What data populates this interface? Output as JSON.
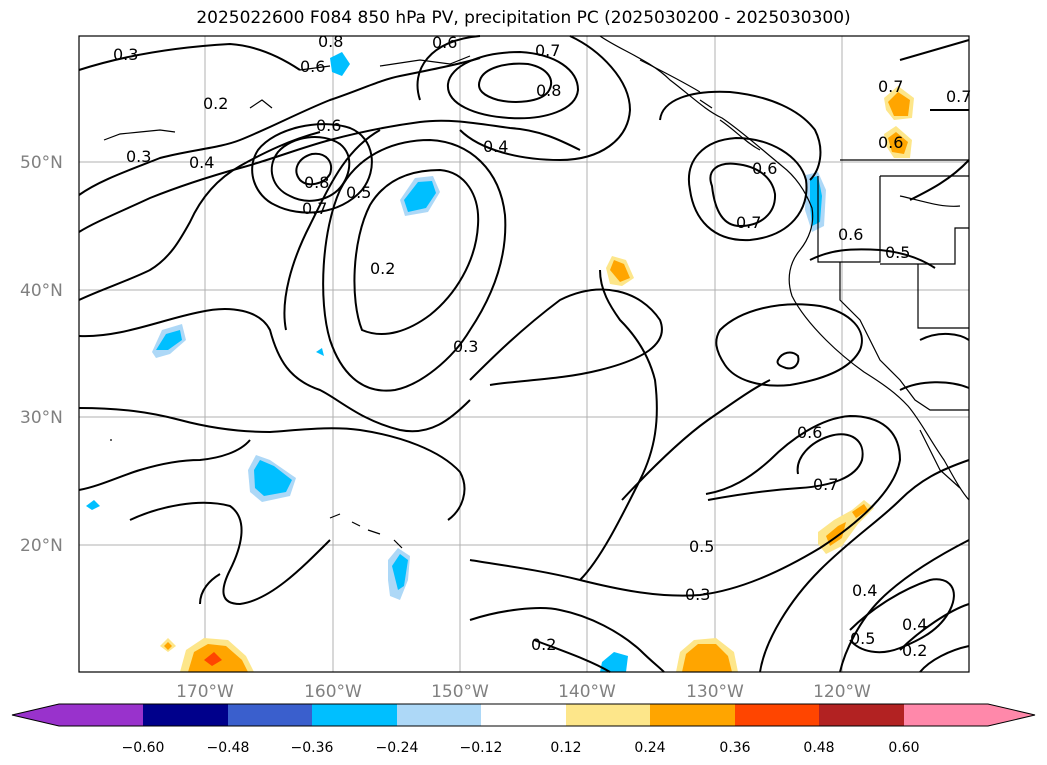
{
  "title": "2025022600 F084 850 hPa PV, precipitation PC (2025030200 - 2025030300)",
  "lat_labels": [
    "50°N",
    "40°N",
    "30°N",
    "20°N"
  ],
  "lon_labels": [
    "170°W",
    "160°W",
    "150°W",
    "140°W",
    "130°W",
    "120°W"
  ],
  "contour_labels": [
    "0.3",
    "0.8",
    "0.6",
    "0.6",
    "0.7",
    "0.8",
    "0.7",
    "0.2",
    "0.3",
    "0.4",
    "0.6",
    "0.4",
    "0.5",
    "0.8",
    "0.7",
    "0.2",
    "0.3",
    "0.7",
    "0.6",
    "0.6",
    "0.5",
    "0.7",
    "0.6",
    "0.6",
    "0.7",
    "0.5",
    "0.3",
    "0.2",
    "0.4",
    "0.5",
    "0.4",
    "0.2"
  ],
  "colorbar": {
    "ticks": [
      "−0.60",
      "−0.48",
      "−0.36",
      "−0.24",
      "−0.12",
      "0.12",
      "0.24",
      "0.36",
      "0.48",
      "0.60"
    ],
    "colors": [
      "#9932cc",
      "#00008b",
      "#3a5fcd",
      "#00bfff",
      "#add8f7",
      "#ffffff",
      "#fde68a",
      "#ffa500",
      "#ff4500",
      "#b22222",
      "#ff88aa"
    ]
  }
}
